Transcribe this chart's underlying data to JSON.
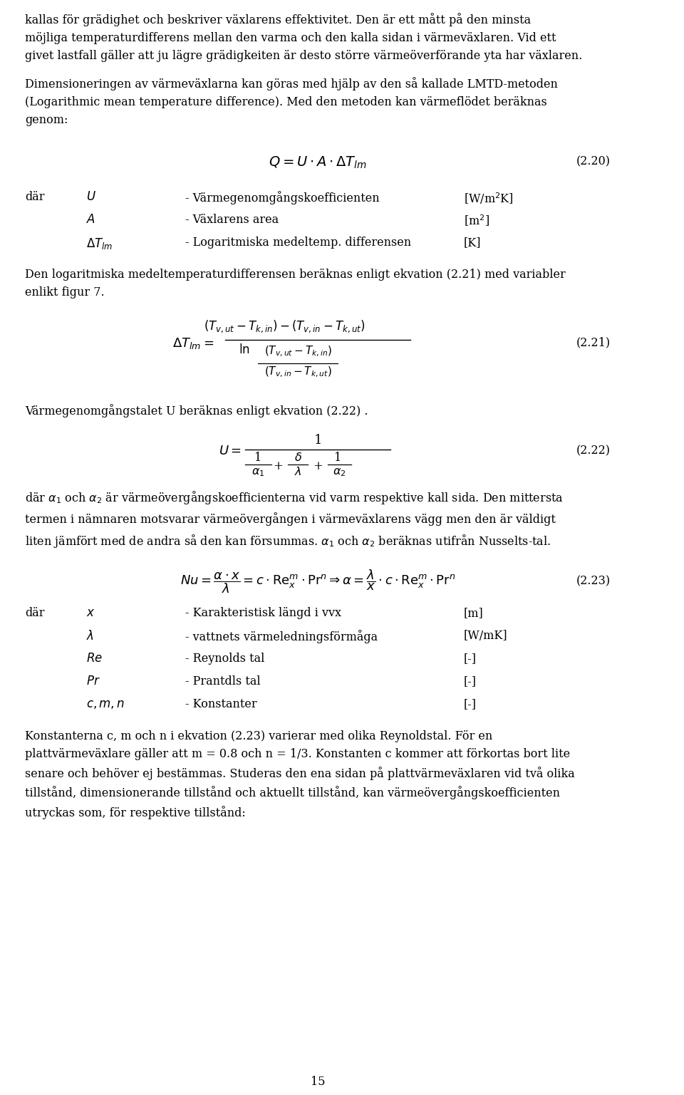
{
  "bg_color": "#ffffff",
  "text_color": "#000000",
  "font_size_body": 11.5,
  "font_size_formula": 13,
  "page_number": "15",
  "paragraphs": [
    "kallas för grädighet och beskriver växlarens effektivitet. Den är ett mått på den minsta\nmöjliga temperaturdifferens mellan den varma och den kalla sidan i värmeväxlaren. Vid ett\ngivet lastfall gäller att ju lägre grädigkeiten är desto större värmeöverförande yta har växlaren.",
    "Dimensioneringen av värmeväxlarna kan göras med hjälp av den så kallade LMTD-metoden\n(Logarithmic mean temperature difference). Med den metoden kan värmeflödet beräknas\ngenom:"
  ],
  "eq220_label": "(2.20)",
  "eq221_label": "(2.21)",
  "eq222_label": "(2.22)",
  "eq223_label": "(2.23)",
  "text_after_220_dar": "där",
  "text_U_def": "- Värmegenomgångskoefficienten",
  "text_U_unit": "[W/m$^2$K]",
  "text_A_def": "- Växlarens area",
  "text_A_unit": "[m$^2$]",
  "text_dT_def": "- Logaritmiska medeltemp. differensen",
  "text_dT_unit": "[K]",
  "text_after_220": "Den logaritmiska medeltemperaturdifferensen beräknas enligt ekvation (2.21) med variabler\nenlikt figur 7.",
  "text_after_221": "Värmegenomgångstalet U beräknas enligt ekvation (2.22) .",
  "text_alpha_def": "där $\\alpha_1$ och $\\alpha_2$ är värmeövergångskoefficienterna vid varm respektive kall sida. Den mittersta\ntermen i nämnaren motsvarar värmeövergången i värmeväxlarens vägg men den är väldigt\nliten jämfört med de andra så den kan försummas. $\\alpha_1$ och $\\alpha_2$ beräknas utifrån Nusselts-tal.",
  "text_var_x": "- Karakteristisk längd i vvx",
  "text_var_x_unit": "[m]",
  "text_var_lambda": "- vattnets värmeledningsförmåga",
  "text_var_lambda_unit": "[W/mK]",
  "text_var_Re": "- Reynolds tal",
  "text_var_Re_unit": "[-]",
  "text_var_Pr": "- Prantdls tal",
  "text_var_Pr_unit": "[-]",
  "text_var_cmn": "- Konstanter",
  "text_var_cmn_unit": "[-]",
  "text_final": "Konstanterna c, m och n i ekvation (2.23) varierar med olika Reynoldstal. För en\nplattvärmeväxlare gäller att m = 0.8 och n = 1/3. Konstanten c kommer att förkortas bort lite\nsenare och behöver ej bestämmas. Studeras den ena sidan på plattvärmeväxlaren vid två olika\ntillstånd, dimensionerande tillstånd och aktuellt tillstånd, kan värmeövergångskoefficienten\nutryckas som, för respektive tillstånd:"
}
